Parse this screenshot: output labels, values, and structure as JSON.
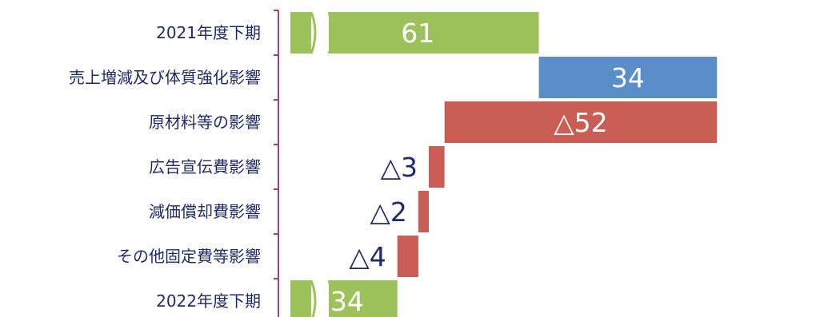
{
  "chart_data": {
    "type": "bar",
    "subtype": "waterfall",
    "orientation": "horizontal",
    "categories": [
      "2021年度下期",
      "売上増減及び体質強化影響",
      "原材料等の影響",
      "広告宣伝費影響",
      "減価償却費影響",
      "その他固定費等影響",
      "2022年度下期"
    ],
    "values": [
      61,
      34,
      -52,
      -3,
      -2,
      -4,
      34
    ],
    "kinds": [
      "total",
      "increase",
      "decrease",
      "decrease",
      "decrease",
      "decrease",
      "total"
    ],
    "data_labels": [
      "61",
      "34",
      "△52",
      "△3",
      "△2",
      "△4",
      "34"
    ],
    "axis_break_on_totals": true,
    "grid": false,
    "legend": "none",
    "colors": {
      "total": "#9dc15b",
      "increase": "#5b8dc9",
      "decrease": "#cb5d57",
      "axis": "#a9406c",
      "category_text": "#1f2a6b",
      "label_on_bar": "#ffffff",
      "label_outside": "#1f2a6b"
    }
  }
}
